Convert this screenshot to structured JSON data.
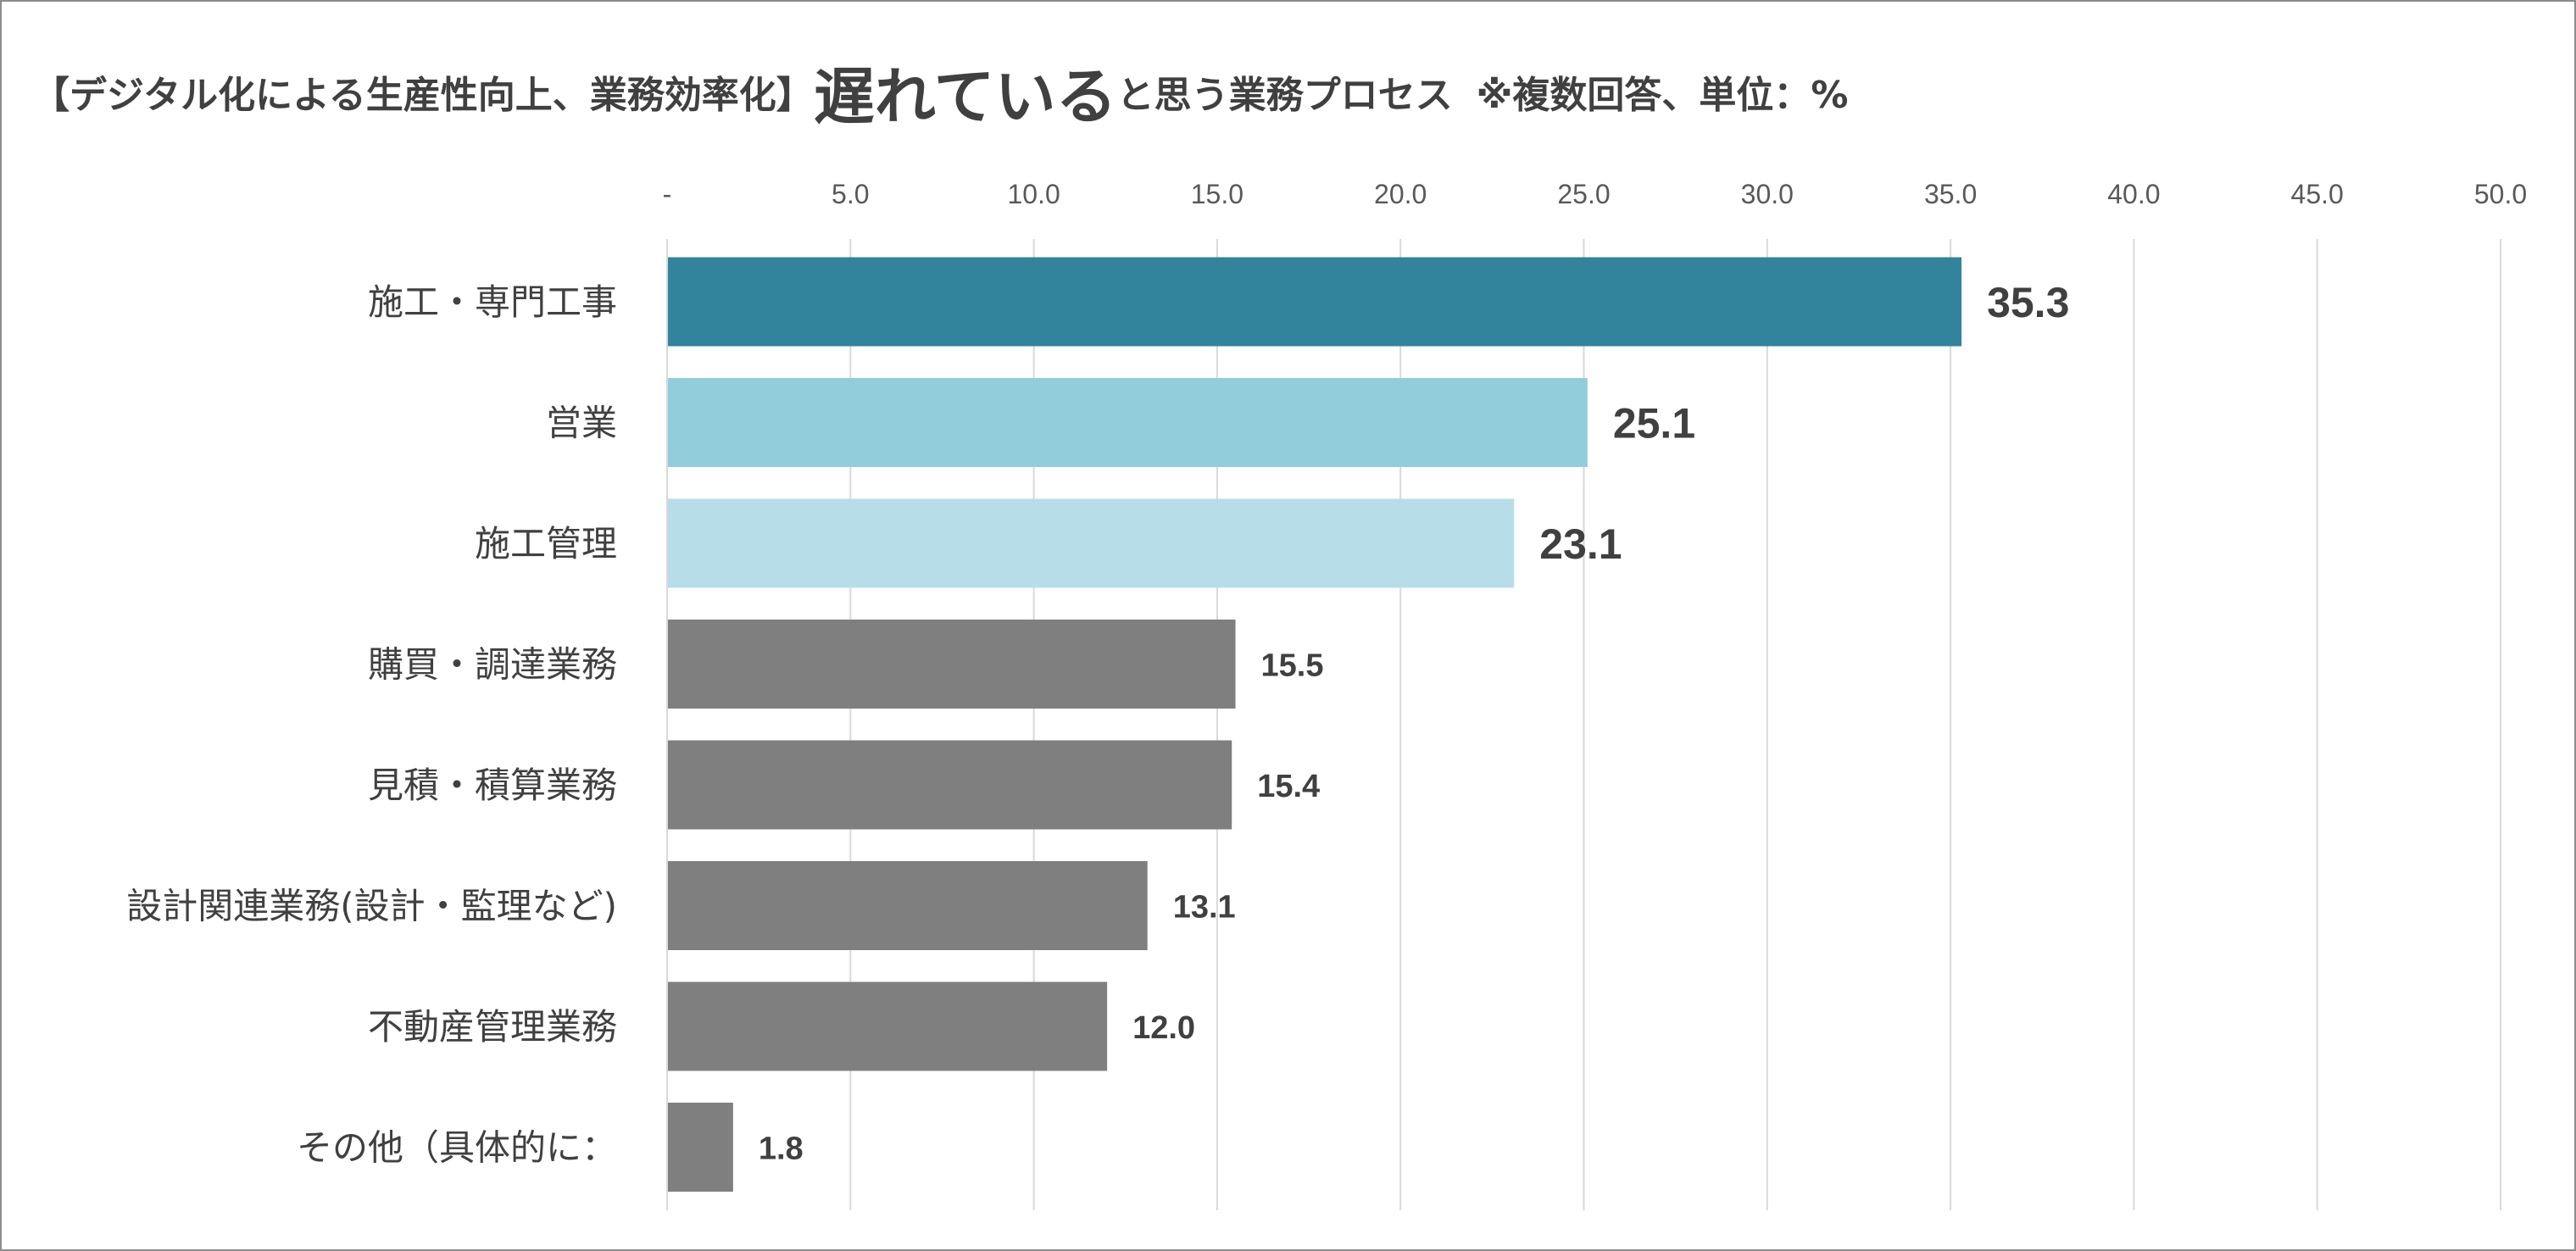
{
  "title": {
    "prefix": "【デジタル化による生産性向上、業務効率化】",
    "emphasis": "遅れている",
    "suffix": "と思う業務プロセス",
    "note": "※複数回答、単位：%"
  },
  "colors": {
    "primary": "#31849b",
    "secondary": "#92cddc",
    "tertiary": "#b7dee8",
    "others": "#7f7f7f",
    "grid": "#d9d9d9",
    "text": "#404040"
  },
  "chart_data": {
    "type": "bar",
    "orientation": "horizontal",
    "categories": [
      "施工・専門工事",
      "営業",
      "施工管理",
      "購買・調達業務",
      "見積・積算業務",
      "設計関連業務(設計・監理など)",
      "不動産管理業務",
      "その他（具体的に："
    ],
    "values": [
      35.3,
      25.1,
      23.1,
      15.5,
      15.4,
      13.1,
      12.0,
      1.8
    ],
    "value_labels": [
      "35.3",
      "25.1",
      "23.1",
      "15.5",
      "15.4",
      "13.1",
      "12.0",
      "1.8"
    ],
    "xlim": [
      0,
      50
    ],
    "x_ticks": [
      "-",
      "5.0",
      "10.0",
      "15.0",
      "20.0",
      "25.0",
      "30.0",
      "35.0",
      "40.0",
      "45.0",
      "50.0"
    ],
    "x_axis_position": "top",
    "grid": true,
    "legend": "none"
  }
}
